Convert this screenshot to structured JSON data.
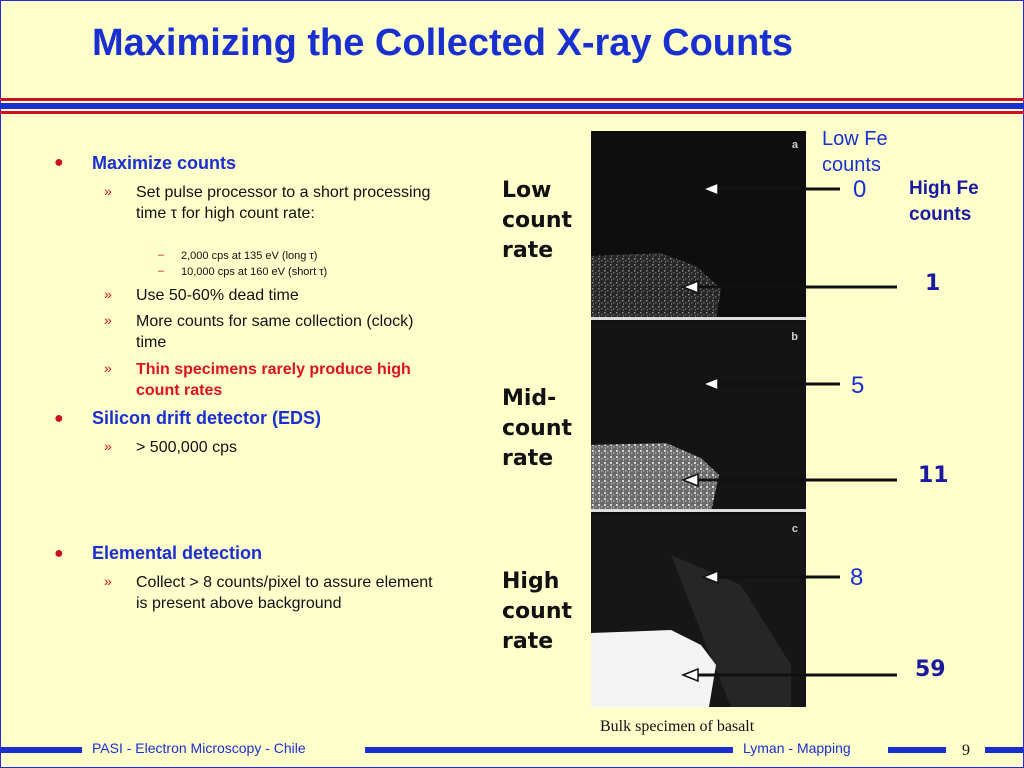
{
  "title": "Maximizing the Collected X-ray Counts",
  "bullets": {
    "b1": "Maximize counts",
    "b1_sub1": "Set pulse processor to a short processing time τ for high count rate:",
    "b1_sub1_sub1": "2,000 cps at 135 eV (long τ)",
    "b1_sub1_sub2": "10,000 cps at 160 eV (short τ)",
    "b1_sub2": "Use 50-60% dead time",
    "b1_sub3": "More counts for same collection (clock) time",
    "b1_sub4": "Thin specimens rarely produce high count rates",
    "b2": "Silicon drift detector (EDS)",
    "b2_sub1": "> 500,000 cps",
    "b3": "Elemental detection",
    "b3_sub1": "Collect > 8 counts/pixel to assure element is present above background"
  },
  "figure": {
    "panel_labels": [
      "a",
      "b",
      "c"
    ],
    "rates": [
      [
        "Low",
        "count",
        "rate"
      ],
      [
        "Mid-",
        "count",
        "rate"
      ],
      [
        "High",
        "count",
        "rate"
      ]
    ],
    "low_fe_header": [
      "Low Fe",
      "counts"
    ],
    "high_fe_header": [
      "High Fe",
      "counts"
    ],
    "low_fe_counts": [
      "0",
      "5",
      "8"
    ],
    "high_fe_counts": [
      "1",
      "11",
      "59"
    ],
    "caption": "Bulk specimen of basalt"
  },
  "footer": {
    "left": "PASI - Electron Microscopy - Chile",
    "right": "Lyman - Mapping",
    "page": "9"
  },
  "colors": {
    "background": "#ffffcc",
    "title_blue": "#1a2fd0",
    "accent_red": "#dd1122"
  }
}
